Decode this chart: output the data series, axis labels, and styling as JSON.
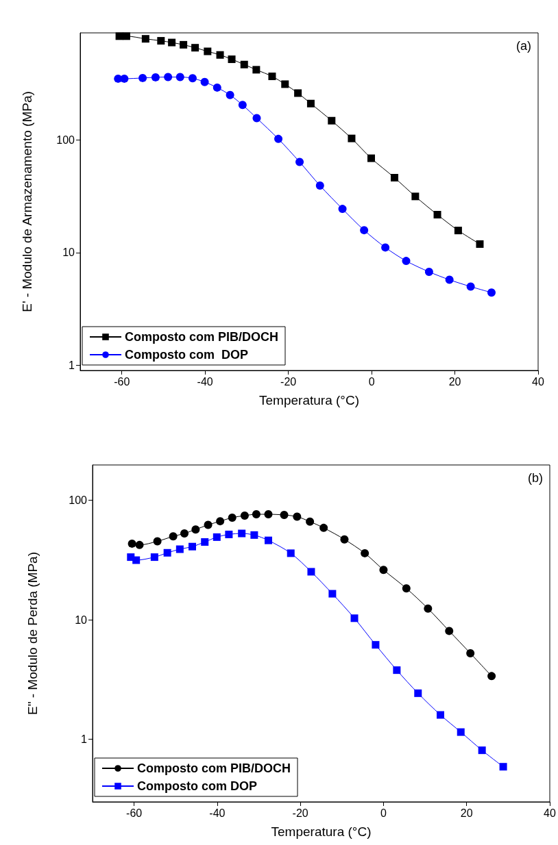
{
  "chart_data": [
    {
      "type": "line",
      "xlabel": "Temperatura (°C)",
      "ylabel": "E' - Modulo de Armazenamento (MPa)",
      "annotations": [
        "(a)"
      ],
      "log": "y",
      "xlim": [
        -70,
        40
      ],
      "xticks": [
        -60,
        -40,
        -20,
        0,
        20,
        40
      ],
      "ylim": [
        0.9,
        890
      ],
      "yticks": [
        1,
        10,
        100
      ],
      "grid": false,
      "legend": "bottom left",
      "series": [
        {
          "name": "Composto com PIB/DOCH",
          "color": "#000000",
          "marker": "square",
          "x": [
            -60.6,
            -58.9,
            -54.3,
            -50.6,
            -48.0,
            -45.2,
            -42.4,
            -39.4,
            -36.4,
            -33.6,
            -30.6,
            -27.7,
            -23.9,
            -20.8,
            -17.7,
            -14.6,
            -9.6,
            -4.8,
            -0.1,
            5.5,
            10.5,
            15.8,
            20.8,
            26.0
          ],
          "values": [
            832,
            832,
            788,
            757,
            731,
            698,
            657,
            610,
            567,
            519,
            466,
            419,
            366,
            312,
            260,
            210,
            148,
            103,
            68.7,
            46.2,
            31.5,
            21.7,
            15.7,
            11.9
          ]
        },
        {
          "name": "Composto com  DOP",
          "color": "#0000ff",
          "marker": "circle",
          "x": [
            -60.9,
            -59.4,
            -55.0,
            -51.9,
            -48.9,
            -46.0,
            -43.0,
            -40.1,
            -37.1,
            -34.0,
            -31.0,
            -27.6,
            -22.4,
            -17.3,
            -12.4,
            -7.0,
            -1.8,
            3.3,
            8.3,
            13.8,
            18.7,
            23.8,
            28.8
          ],
          "values": [
            349,
            349,
            354,
            359,
            361,
            361,
            352,
            326,
            291,
            250,
            204,
            156,
            102,
            63.7,
            39.3,
            24.4,
            15.8,
            11.1,
            8.43,
            6.75,
            5.74,
            4.99,
            4.42
          ]
        }
      ]
    },
    {
      "type": "line",
      "xlabel": "Temperatura (°C)",
      "ylabel": "E\" - Modulo de Perda (MPa)",
      "annotations": [
        "(b)"
      ],
      "log": "y",
      "xlim": [
        -70,
        40
      ],
      "xticks": [
        -60,
        -40,
        -20,
        0,
        20,
        40
      ],
      "ylim": [
        0.3,
        197
      ],
      "yticks": [
        1,
        10,
        100
      ],
      "grid": false,
      "legend": "bottom left",
      "series": [
        {
          "name": "Composto com PIB/DOCH",
          "color": "#000000",
          "marker": "circle",
          "x": [
            -60.5,
            -58.7,
            -54.4,
            -50.6,
            -47.9,
            -45.2,
            -42.2,
            -39.3,
            -36.4,
            -33.4,
            -30.6,
            -27.7,
            -23.9,
            -20.8,
            -17.7,
            -14.4,
            -9.4,
            -4.5,
            0,
            5.5,
            10.7,
            15.8,
            20.9,
            26.0
          ],
          "values": [
            43.3,
            42.2,
            45.3,
            49.8,
            52.7,
            56.9,
            62.1,
            66.7,
            71.4,
            74.3,
            76.2,
            76.2,
            75.2,
            72.8,
            66.2,
            58.7,
            47.0,
            36.0,
            26.1,
            18.3,
            12.4,
            8.06,
            5.24,
            3.38
          ]
        },
        {
          "name": "Composto com DOP",
          "color": "#0000ff",
          "marker": "square",
          "x": [
            -60.8,
            -59.5,
            -55.1,
            -52.0,
            -49.0,
            -46.0,
            -43.0,
            -40.1,
            -37.2,
            -34.1,
            -31.1,
            -27.7,
            -22.3,
            -17.4,
            -12.3,
            -7.0,
            -1.9,
            3.2,
            8.3,
            13.7,
            18.6,
            23.7,
            28.8
          ],
          "values": [
            33.4,
            31.5,
            33.4,
            36.3,
            38.9,
            40.9,
            44.7,
            49.1,
            51.7,
            52.7,
            51.1,
            46.1,
            36.0,
            25.2,
            16.5,
            10.3,
            6.17,
            3.79,
            2.43,
            1.6,
            1.15,
            0.81,
            0.59
          ]
        }
      ]
    }
  ]
}
